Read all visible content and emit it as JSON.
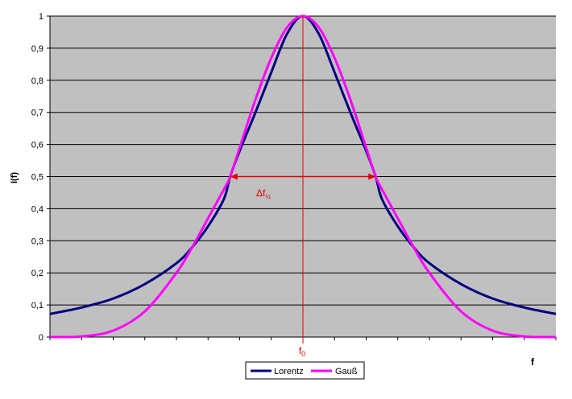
{
  "chart_data": {
    "type": "line",
    "xlabel": "f",
    "ylabel": "I(f)",
    "ylim": [
      0,
      1
    ],
    "y_ticks": [
      0,
      0.1,
      0.2,
      0.3,
      0.4,
      0.5,
      0.6,
      0.7,
      0.8,
      0.9,
      1
    ],
    "y_tick_labels": [
      "0",
      "0,1",
      "0,2",
      "0,3",
      "0,4",
      "0,5",
      "0,6",
      "0,7",
      "0,8",
      "0,9",
      "1"
    ],
    "grid": "horizontal",
    "legend_position": "bottom",
    "plot_background": "#c0c0c0",
    "x_range": [
      -4,
      4
    ],
    "series": [
      {
        "name": "Lorentz",
        "color": "#000080",
        "x": [
          -4,
          -3.5,
          -3,
          -2.5,
          -2,
          -1.75,
          -1.5,
          -1.25,
          -1.15,
          -1,
          -0.75,
          -0.5,
          -0.25,
          0,
          0.25,
          0.5,
          0.75,
          1,
          1.15,
          1.25,
          1.5,
          1.75,
          2,
          2.5,
          3,
          3.5,
          4
        ],
        "values": [
          0.072,
          0.092,
          0.12,
          0.165,
          0.23,
          0.28,
          0.345,
          0.43,
          0.5,
          0.58,
          0.7,
          0.825,
          0.945,
          1.0,
          0.945,
          0.825,
          0.7,
          0.58,
          0.5,
          0.43,
          0.345,
          0.28,
          0.23,
          0.165,
          0.12,
          0.092,
          0.072
        ]
      },
      {
        "name": "Gauß",
        "color": "#ff00ff",
        "x": [
          -4,
          -3.5,
          -3,
          -2.5,
          -2,
          -1.75,
          -1.5,
          -1.25,
          -1.15,
          -1,
          -0.75,
          -0.5,
          -0.25,
          0,
          0.25,
          0.5,
          0.75,
          1,
          1.15,
          1.25,
          1.5,
          1.75,
          2,
          2.5,
          3,
          3.5,
          4
        ],
        "values": [
          0.0,
          0.002,
          0.02,
          0.08,
          0.2,
          0.28,
          0.37,
          0.46,
          0.5,
          0.59,
          0.74,
          0.87,
          0.965,
          1.0,
          0.965,
          0.87,
          0.74,
          0.59,
          0.5,
          0.46,
          0.37,
          0.28,
          0.2,
          0.08,
          0.02,
          0.002,
          0.0
        ]
      }
    ],
    "annotations": {
      "center_label_main": "f",
      "center_label_sub": "0",
      "halfwidth_label_main": "Δf",
      "halfwidth_label_sub": "½",
      "annotation_color": "#e00000",
      "center_x": 0,
      "halfwidth_y": 0.5,
      "halfwidth_x": [
        -1.15,
        1.15
      ]
    }
  }
}
